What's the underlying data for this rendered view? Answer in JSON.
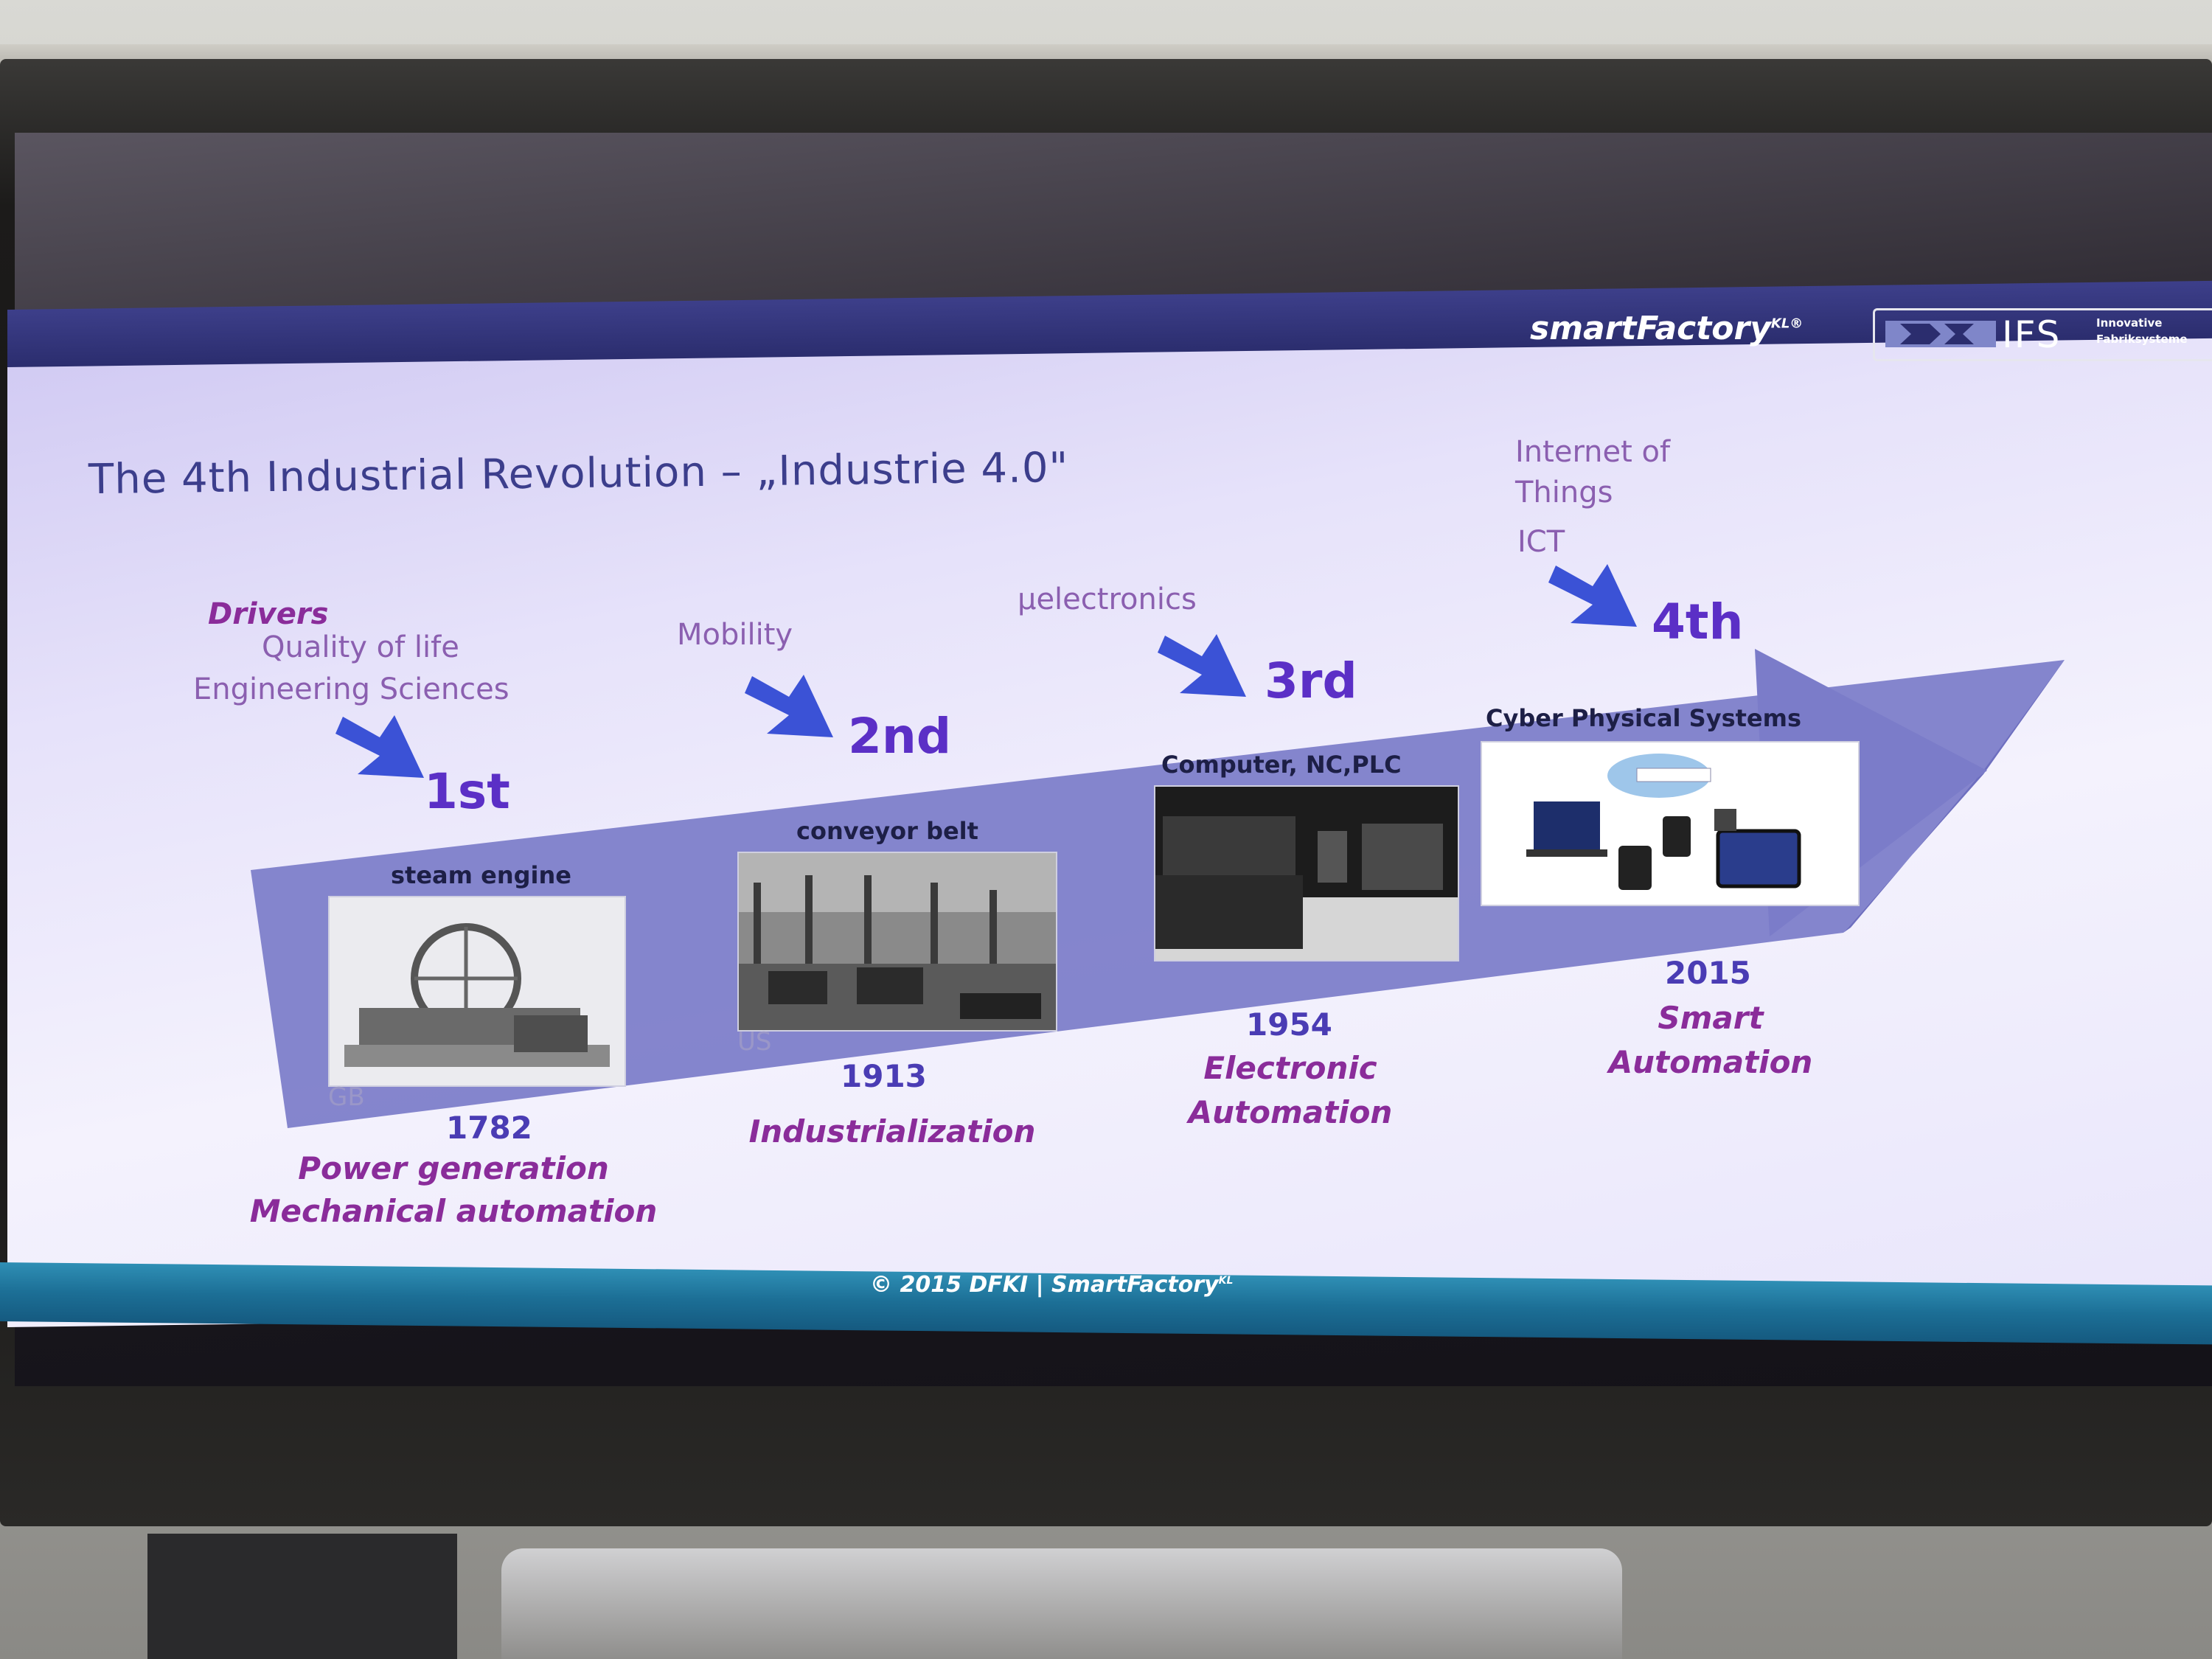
{
  "slide": {
    "brand": "smartFactory",
    "brand_sup": "KL®",
    "partner_logo": "IFS",
    "partner_sub_1": "Innovative",
    "partner_sub_2": "Fabriksysteme",
    "title": "The 4th Industrial Revolution – „Industrie 4.0\"",
    "footer": "© 2015 DFKI | SmartFactory",
    "footer_sup": "KL"
  },
  "drivers": {
    "heading": "Drivers",
    "d1_line1": "Quality of life",
    "d1_line2": "Engineering Sciences",
    "d2": "Mobility",
    "d3": "µelectronics",
    "d4_line1": "Internet of",
    "d4_line2": "Things",
    "d4_line3": "ICT"
  },
  "revolutions": [
    {
      "ordinal": "1st",
      "caption": "steam engine",
      "country": "GB",
      "year": "1782",
      "era_line1": "Power generation",
      "era_line2": "Mechanical automation"
    },
    {
      "ordinal": "2nd",
      "caption": "conveyor belt",
      "country": "US",
      "year": "1913",
      "era_line1": "Industrialization",
      "era_line2": ""
    },
    {
      "ordinal": "3rd",
      "caption": "Computer, NC,PLC",
      "country": "",
      "year": "1954",
      "era_line1": "Electronic",
      "era_line2": "Automation"
    },
    {
      "ordinal": "4th",
      "caption": "Cyber Physical Systems",
      "country": "",
      "year": "2015",
      "era_line1": "Smart",
      "era_line2": "Automation"
    }
  ],
  "colors": {
    "arrow_band": "#7b7cc9",
    "header_bar": "#2b2d6e",
    "footer_bar": "#1c6f96",
    "ordinal": "#5b2fc6",
    "era": "#8a2c9a",
    "down_arrow": "#3b52d6"
  }
}
